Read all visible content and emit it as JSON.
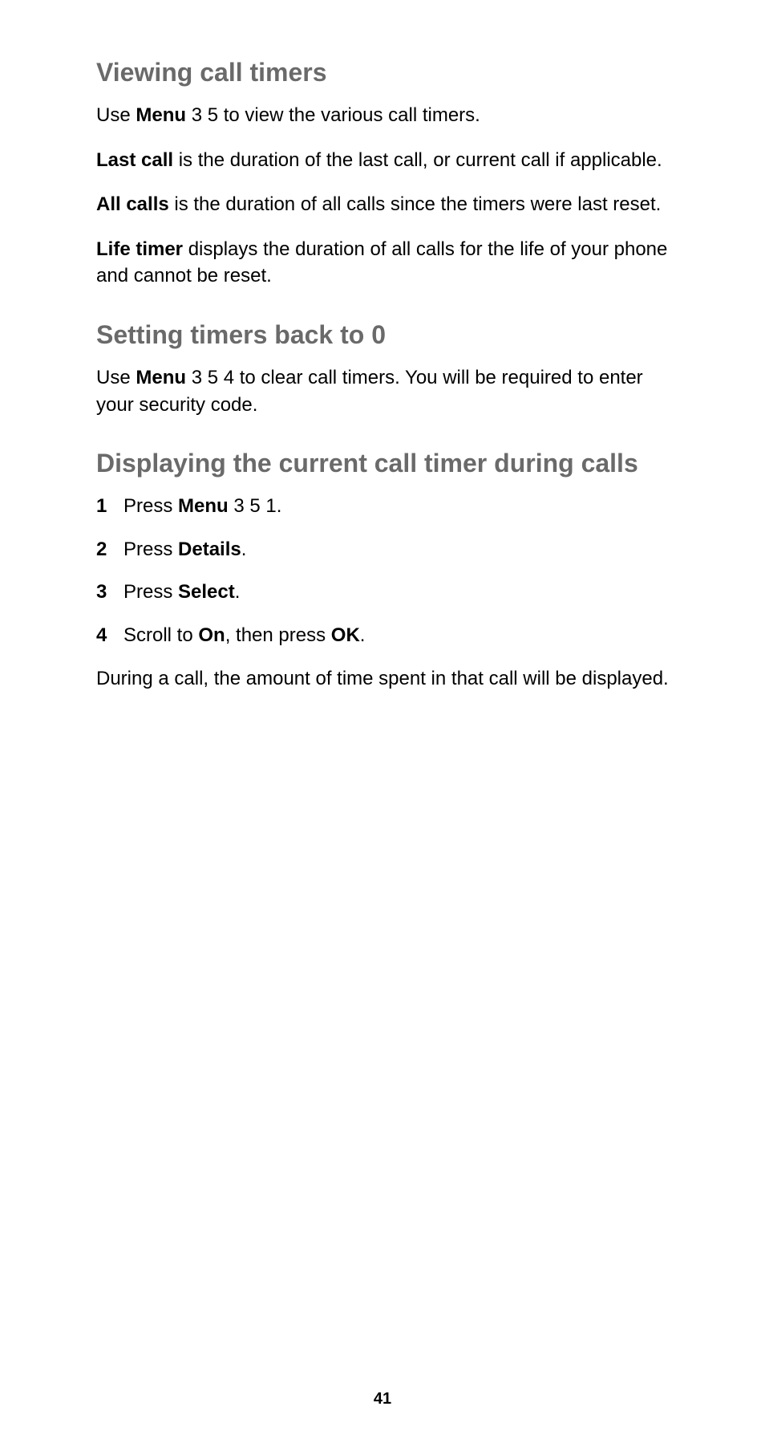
{
  "page": {
    "pageNumber": "41",
    "sections": {
      "viewing": {
        "title": "Viewing call timers",
        "p1_a": "Use ",
        "p1_b": "Menu",
        "p1_c": " 3 5 to view the various call timers.",
        "p2_a": "Last call",
        "p2_b": " is the duration of the last call, or current call if applicable.",
        "p3_a": "All calls",
        "p3_b": " is the duration of all calls since the timers were last reset.",
        "p4_a": "Life timer",
        "p4_b": " displays the duration of all calls for the life of your phone and cannot be reset."
      },
      "setting": {
        "title": "Setting timers back to 0",
        "p1_a": "Use ",
        "p1_b": "Menu",
        "p1_c": " 3 5 4 to clear call timers. You will be required to enter your security code."
      },
      "displaying": {
        "title": "Displaying the current call timer during calls",
        "steps": {
          "n1": "1",
          "s1_a": "Press ",
          "s1_b": "Menu",
          "s1_c": " 3 5 1.",
          "n2": "2",
          "s2_a": "Press ",
          "s2_b": "Details",
          "s2_c": ".",
          "n3": "3",
          "s3_a": "Press ",
          "s3_b": "Select",
          "s3_c": ".",
          "n4": "4",
          "s4_a": "Scroll to ",
          "s4_b": "On",
          "s4_c": ", then press ",
          "s4_d": "OK",
          "s4_e": "."
        },
        "p_after": "During a call, the amount of time spent in that call will be displayed."
      }
    }
  }
}
